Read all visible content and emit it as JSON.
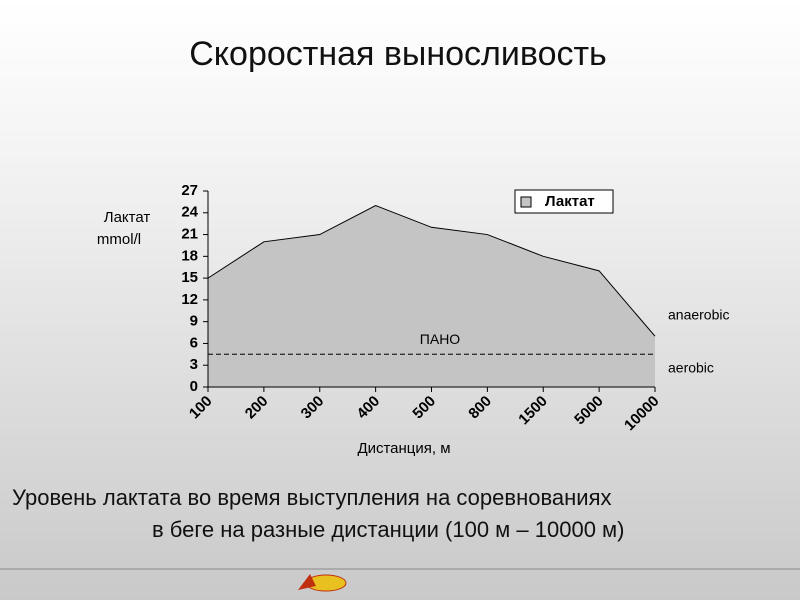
{
  "title": "Скоростная выносливость",
  "caption": [
    "Уровень лактата во время выступления на соревнованиях",
    "в беге на разные дистанции (100 м – 10000 м)"
  ],
  "chart_data": {
    "type": "area",
    "categories": [
      "100",
      "200",
      "300",
      "400",
      "500",
      "800",
      "1500",
      "5000",
      "10000"
    ],
    "series": [
      {
        "name": "Лактат",
        "color": "#c4c4c4",
        "values": [
          15,
          20,
          21,
          25,
          22,
          21,
          18,
          16,
          7
        ]
      }
    ],
    "ylim": [
      0,
      27
    ],
    "yticks": [
      0,
      3,
      6,
      9,
      12,
      15,
      18,
      21,
      24,
      27
    ],
    "ylabel": [
      "Лактат",
      "mmol/l"
    ],
    "xlabel": "Дистанция, м",
    "threshold": {
      "value": 4.5,
      "label": "ПАНО"
    },
    "annotations": [
      "anaerobic",
      "aerobic"
    ],
    "legend": "top-right"
  }
}
